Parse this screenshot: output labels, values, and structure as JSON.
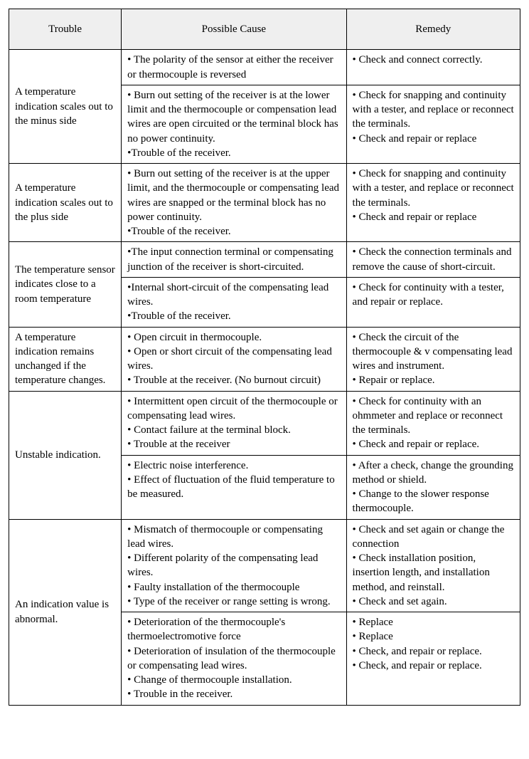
{
  "headers": {
    "trouble": "Trouble",
    "cause": "Possible Cause",
    "remedy": "Remedy"
  },
  "rows": {
    "r1": {
      "trouble": "A temperature indication scales out to the minus side",
      "cause_a": "• The polarity of the sensor at either the receiver or thermocouple is reversed",
      "remedy_a": "• Check and connect correctly.",
      "cause_b": "• Burn out setting of the receiver is at the lower limit and the thermocouple or compensation lead wires are open circuited or the terminal block has no power continuity.\n•Trouble of the receiver.",
      "remedy_b": "• Check for snapping and continuity with a tester, and replace or reconnect the terminals.\n• Check and repair or replace"
    },
    "r2": {
      "trouble": "A temperature indication scales out to the plus side",
      "cause": "• Burn out setting of the receiver is at the upper limit, and the thermocouple or compensating lead wires are snapped or the terminal block has no power continuity.\n•Trouble of the receiver.",
      "remedy": "• Check for snapping and continuity with a tester, and replace or reconnect the terminals.\n• Check and repair or replace"
    },
    "r3": {
      "trouble": "The temperature sensor indicates close to a room temperature",
      "cause_a": "•The input connection terminal or compensating junction of the receiver is short-circuited.",
      "remedy_a": "• Check the connection terminals and remove the cause of short-circuit.",
      "cause_b": "•Internal short-circuit of the compensating lead wires.\n•Trouble of the receiver.",
      "remedy_b": "• Check for continuity with a tester, and repair or replace."
    },
    "r4": {
      "trouble": "A temperature indication remains unchanged if the temperature changes.",
      "cause": "• Open circuit in thermocouple.\n• Open or short circuit of the compensating lead wires.\n• Trouble at the receiver. (No burnout circuit)",
      "remedy": "• Check the circuit of the thermocouple & v compensating lead wires and instrument.\n• Repair or replace."
    },
    "r5": {
      "trouble": "Unstable indication.",
      "cause_a": "• Intermittent open circuit of the thermocouple or compensating lead wires.\n• Contact failure at the terminal block.\n• Trouble at the receiver",
      "remedy_a": "• Check for continuity with an ohmmeter and replace or reconnect the terminals.\n• Check and repair or replace.",
      "cause_b": "• Electric noise interference.\n• Effect of fluctuation of the fluid temperature to be measured.",
      "remedy_b": "• After a check, change the grounding method or shield.\n• Change to the slower response thermocouple."
    },
    "r6": {
      "trouble": "An indication value is abnormal.",
      "cause_a": "• Mismatch of thermocouple or compensating lead wires.\n• Different polarity of the compensating lead wires.\n• Faulty installation of the thermocouple\n• Type of the receiver or range setting is wrong.",
      "remedy_a": "• Check and set again or change the connection\n• Check installation position, insertion length, and installation method, and reinstall.\n• Check and set again.",
      "cause_b": "• Deterioration of the thermocouple's thermoelectromotive force\n• Deterioration of insulation of the thermocouple or compensating lead wires.\n• Change of thermocouple installation.\n• Trouble in the receiver.",
      "remedy_b": "• Replace\n• Replace\n• Check, and repair or replace.\n• Check, and repair or replace."
    }
  }
}
